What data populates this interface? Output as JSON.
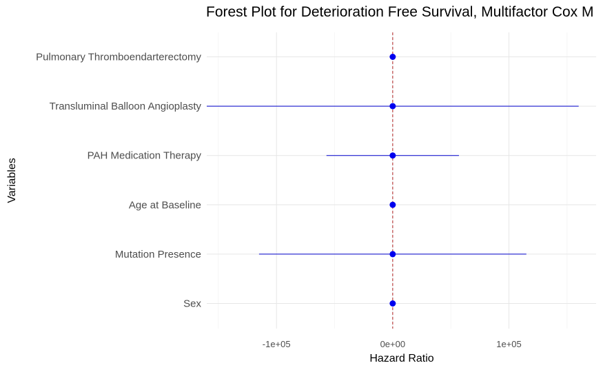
{
  "chart_data": {
    "type": "forest",
    "title": "Forest Plot for Deterioration Free Survival, Multifactor Cox M",
    "xlabel": "Hazard Ratio",
    "ylabel": "Variables",
    "xlim": [
      -160000,
      175000
    ],
    "x_ticks": [
      -100000,
      0,
      100000
    ],
    "x_tick_labels": [
      "-1e+05",
      "0e+00",
      "1e+05"
    ],
    "reference_line": 1,
    "grid": true,
    "point_color": "#0000ee",
    "ci_color": "#0000cc",
    "reference_color": "#b22222",
    "variables": [
      {
        "label": "Pulmonary Thromboendarterectomy",
        "hr": 1,
        "lower": 1,
        "upper": 1
      },
      {
        "label": "Transluminal Balloon Angioplasty",
        "hr": 1,
        "lower": -160000,
        "upper": 160000
      },
      {
        "label": "PAH Medication Therapy",
        "hr": 1,
        "lower": -57000,
        "upper": 57000
      },
      {
        "label": "Age at Baseline",
        "hr": 1,
        "lower": 1,
        "upper": 1
      },
      {
        "label": "Mutation Presence",
        "hr": 1,
        "lower": -115000,
        "upper": 115000
      },
      {
        "label": "Sex",
        "hr": 1,
        "lower": 1,
        "upper": 1
      }
    ]
  }
}
